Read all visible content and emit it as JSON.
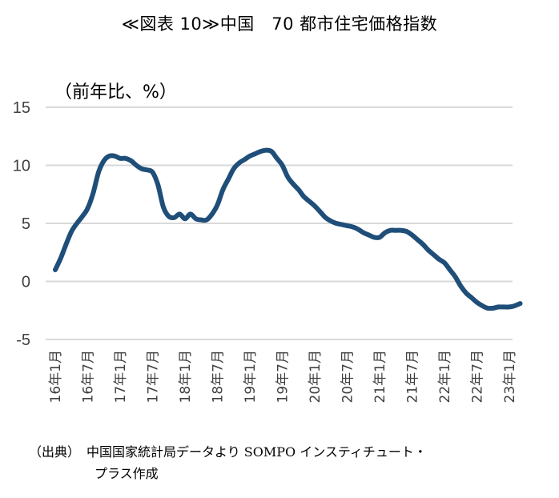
{
  "chart_data": {
    "type": "line",
    "title": "≪図表 10≫中国　70 都市住宅価格指数",
    "ylabel": "（前年比、%）",
    "ylim": [
      -5,
      15
    ],
    "yticks": [
      "15",
      "10",
      "5",
      "0",
      "-5"
    ],
    "ytick_values": [
      15,
      10,
      5,
      0,
      -5
    ],
    "grid": true,
    "legend": "none",
    "line_color": "#1f4e79",
    "x_labels": [
      "16年1月",
      "16年7月",
      "17年1月",
      "17年7月",
      "18年1月",
      "18年7月",
      "19年1月",
      "19年7月",
      "20年1月",
      "20年7月",
      "21年1月",
      "21年7月",
      "22年1月",
      "22年7月",
      "23年1月"
    ],
    "series": [
      {
        "x": [
          "2016-01",
          "2016-02",
          "2016-03",
          "2016-04",
          "2016-05",
          "2016-06",
          "2016-07",
          "2016-08",
          "2016-09",
          "2016-10",
          "2016-11",
          "2016-12",
          "2017-01",
          "2017-02",
          "2017-03",
          "2017-04",
          "2017-05",
          "2017-06",
          "2017-07",
          "2017-08",
          "2017-09",
          "2017-10",
          "2017-11",
          "2017-12",
          "2018-01",
          "2018-02",
          "2018-03",
          "2018-04",
          "2018-05",
          "2018-06",
          "2018-07",
          "2018-08",
          "2018-09",
          "2018-10",
          "2018-11",
          "2018-12",
          "2019-01",
          "2019-02",
          "2019-03",
          "2019-04",
          "2019-05",
          "2019-06",
          "2019-07",
          "2019-08",
          "2019-09",
          "2019-10",
          "2019-11",
          "2019-12",
          "2020-01",
          "2020-02",
          "2020-03",
          "2020-04",
          "2020-05",
          "2020-06",
          "2020-07",
          "2020-08",
          "2020-09",
          "2020-10",
          "2020-11",
          "2020-12",
          "2021-01",
          "2021-02",
          "2021-03",
          "2021-04",
          "2021-05",
          "2021-06",
          "2021-07",
          "2021-08",
          "2021-09",
          "2021-10",
          "2021-11",
          "2021-12",
          "2022-01",
          "2022-02",
          "2022-03",
          "2022-04",
          "2022-05",
          "2022-06",
          "2022-07",
          "2022-08",
          "2022-09",
          "2022-10",
          "2022-11",
          "2022-12",
          "2023-01",
          "2023-02",
          "2023-03"
        ],
        "values": [
          1.0,
          2.0,
          3.2,
          4.3,
          5.0,
          5.6,
          6.3,
          7.6,
          9.4,
          10.4,
          10.8,
          10.8,
          10.6,
          10.6,
          10.4,
          10.0,
          9.7,
          9.6,
          9.4,
          8.3,
          6.4,
          5.6,
          5.5,
          5.8,
          5.4,
          5.8,
          5.4,
          5.3,
          5.3,
          5.8,
          6.6,
          7.9,
          8.8,
          9.7,
          10.2,
          10.5,
          10.8,
          11.0,
          11.2,
          11.3,
          11.2,
          10.6,
          10.0,
          9.0,
          8.4,
          7.9,
          7.3,
          6.9,
          6.5,
          6.0,
          5.5,
          5.2,
          5.0,
          4.9,
          4.8,
          4.7,
          4.5,
          4.2,
          4.0,
          3.8,
          3.8,
          4.2,
          4.4,
          4.4,
          4.4,
          4.3,
          4.0,
          3.6,
          3.2,
          2.7,
          2.3,
          1.9,
          1.6,
          1.0,
          0.4,
          -0.4,
          -1.0,
          -1.4,
          -1.8,
          -2.1,
          -2.3,
          -2.3,
          -2.2,
          -2.2,
          -2.2,
          -2.1,
          -1.9
        ]
      }
    ]
  },
  "source": {
    "label": "（出典）",
    "line1": "中国国家統計局データより SOMPO インスティチュート・",
    "line2": "プラス作成"
  }
}
